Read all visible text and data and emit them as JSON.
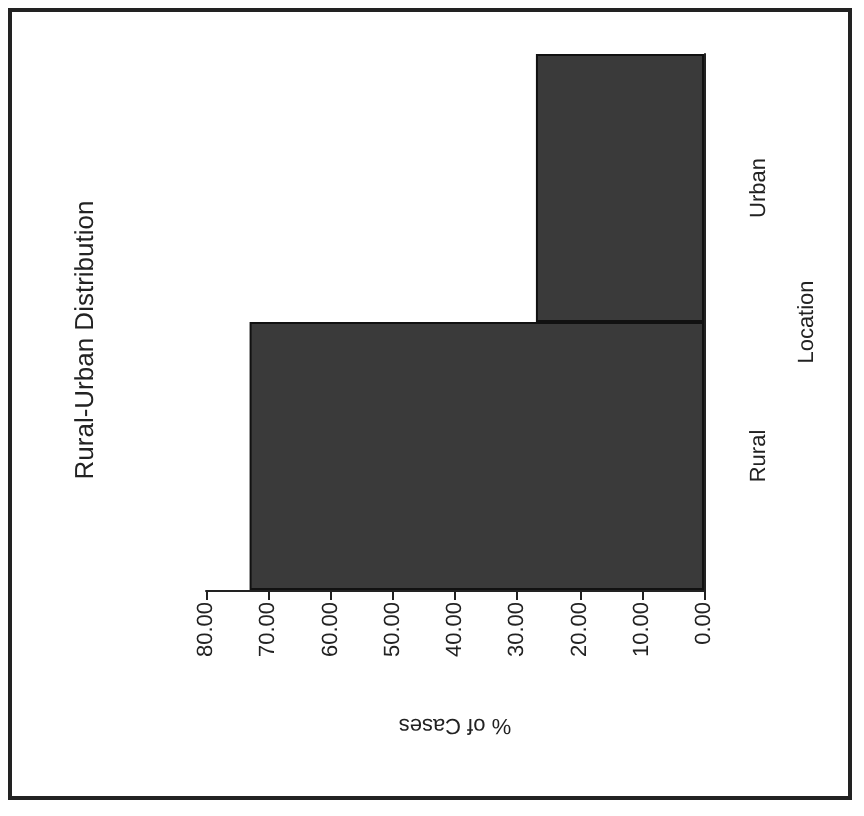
{
  "chart_data": {
    "type": "bar",
    "orientation": "horizontal",
    "title": "Rural-Urban Distribution",
    "xlabel": "% of Cases",
    "ylabel": "Location",
    "categories": [
      "Urban",
      "Rural"
    ],
    "values": [
      27,
      73
    ],
    "color": "#3a3a3a",
    "xlim": [
      80,
      0
    ],
    "xticks": [
      {
        "value": 80,
        "label": "80.00"
      },
      {
        "value": 70,
        "label": "70.00"
      },
      {
        "value": 60,
        "label": "60.00"
      },
      {
        "value": 50,
        "label": "50.00"
      },
      {
        "value": 40,
        "label": "40.00"
      },
      {
        "value": 30,
        "label": "30.00"
      },
      {
        "value": 20,
        "label": "20.00"
      },
      {
        "value": 10,
        "label": "10.00"
      },
      {
        "value": 0,
        "label": "0.00"
      }
    ],
    "grid": false
  }
}
